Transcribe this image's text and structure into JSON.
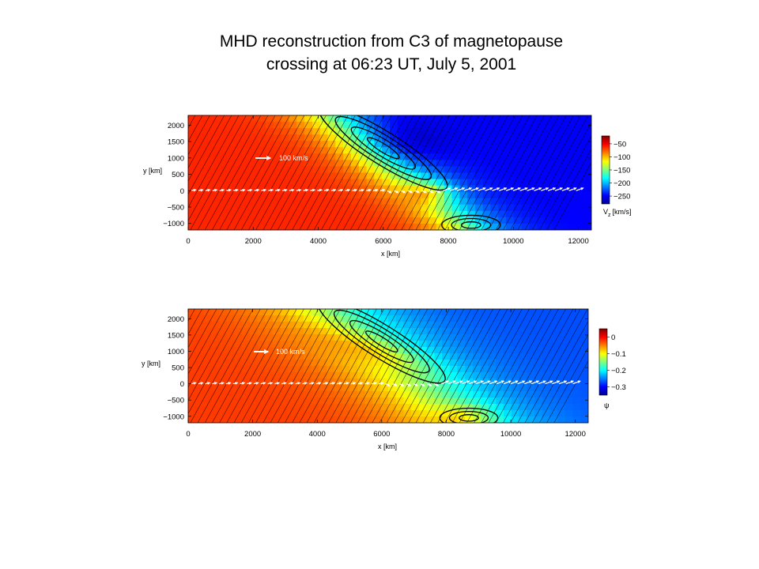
{
  "title": {
    "line1": "MHD reconstruction from C3 of magnetopause",
    "line2": "crossing at 06:23 UT, July 5, 2001"
  },
  "chart_data": [
    {
      "type": "heatmap",
      "quantity_label": "V",
      "quantity_subscript": "z",
      "quantity_unit": "[km/s]",
      "xlabel": "x [km]",
      "ylabel": "y [km]",
      "xlim": [
        0,
        12400
      ],
      "ylim": [
        -1200,
        2300
      ],
      "x_ticks": [
        "0",
        "2000",
        "4000",
        "6000",
        "8000",
        "10000",
        "12000"
      ],
      "y_ticks": [
        "2000",
        "1500",
        "1000",
        "500",
        "0",
        "−500",
        "−1000"
      ],
      "colorbar_ticks": [
        "−50",
        "−100",
        "−150",
        "−200",
        "−250"
      ],
      "colorbar_range": [
        -20,
        -280
      ],
      "colormap": "jet",
      "reference_arrow_label": "100 km/s",
      "overlay": "field lines (contours of psi) and velocity vectors along y = 0"
    },
    {
      "type": "heatmap",
      "quantity_label": "ψ",
      "xlabel": "x [km]",
      "ylabel": "y [km]",
      "xlim": [
        0,
        12400
      ],
      "ylim": [
        -1200,
        2300
      ],
      "x_ticks": [
        "0",
        "2000",
        "4000",
        "6000",
        "8000",
        "10000",
        "12000"
      ],
      "y_ticks": [
        "2000",
        "1500",
        "1000",
        "500",
        "0",
        "−500",
        "−1000"
      ],
      "colorbar_ticks": [
        "0",
        "−0.1",
        "−0.2",
        "−0.3"
      ],
      "colorbar_range": [
        0.05,
        -0.35
      ],
      "colormap": "jet",
      "reference_arrow_label": "100 km/s",
      "overlay": "field lines (contours of psi) and velocity vectors along y = 0"
    }
  ]
}
